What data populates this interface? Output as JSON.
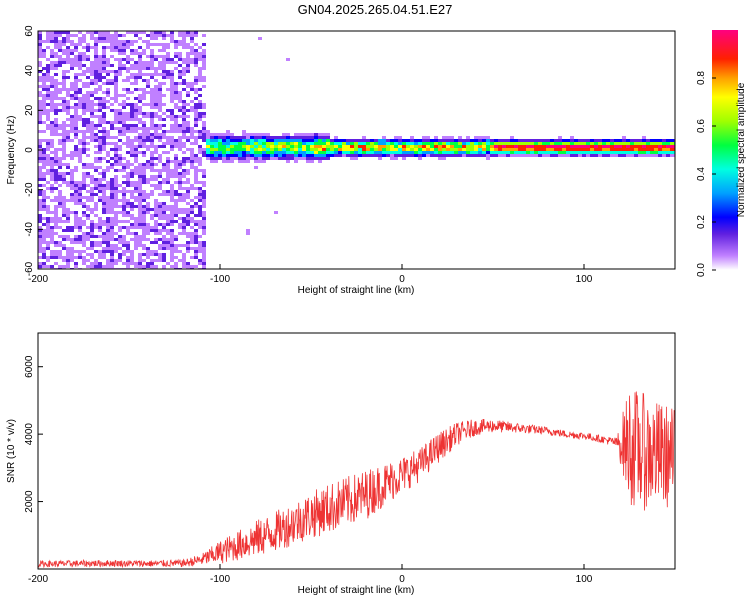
{
  "title": "GN04.2025.265.04.51.E27",
  "chart_data": [
    {
      "type": "heatmap",
      "xlabel": "Height of straight line (km)",
      "ylabel": "Frequency (Hz)",
      "xlim": [
        -200,
        150
      ],
      "ylim": [
        -60,
        60
      ],
      "x_ticks": [
        -200,
        -100,
        0,
        100
      ],
      "y_ticks": [
        -60,
        -40,
        -20,
        0,
        20,
        40,
        60
      ],
      "colorbar": {
        "label": "Normalized spectral amplitude",
        "range": [
          0,
          1
        ],
        "ticks": [
          "0.0",
          "0.2",
          "0.4",
          "0.6",
          "0.8"
        ],
        "colormap": [
          "#ffffff",
          "#c080ff",
          "#6020e0",
          "#0000ff",
          "#00a0ff",
          "#00ffe0",
          "#00ff40",
          "#a0ff00",
          "#ffff00",
          "#ffa000",
          "#ff2000",
          "#ff0080"
        ]
      },
      "features": {
        "noise_region_km": [
          -200,
          -108
        ],
        "ridge_frequency_hz": 2,
        "strong_band_km": [
          50,
          150
        ]
      }
    },
    {
      "type": "line",
      "xlabel": "Height of straight line (km)",
      "ylabel": "SNR (10 * v/v)",
      "xlim": [
        -200,
        150
      ],
      "ylim": [
        0,
        7000
      ],
      "x_ticks": [
        -200,
        -100,
        0,
        100
      ],
      "y_ticks": [
        2000,
        4000,
        6000
      ],
      "color": "#ee3333",
      "series": [
        {
          "name": "SNR",
          "x": [
            -200,
            -180,
            -160,
            -140,
            -120,
            -110,
            -100,
            -90,
            -80,
            -70,
            -60,
            -50,
            -40,
            -30,
            -20,
            -10,
            0,
            10,
            20,
            30,
            40,
            50,
            60,
            70,
            80,
            90,
            100,
            110,
            118,
            125,
            130,
            140,
            150
          ],
          "y": [
            150,
            160,
            170,
            160,
            170,
            280,
            500,
            700,
            900,
            1100,
            1350,
            1600,
            1800,
            2000,
            2200,
            2500,
            2800,
            3100,
            3600,
            4000,
            4200,
            4250,
            4200,
            4150,
            4100,
            4000,
            3950,
            3850,
            3750,
            3700,
            3500,
            3400,
            3300
          ],
          "noise": [
            90,
            100,
            100,
            100,
            110,
            180,
            350,
            450,
            550,
            600,
            650,
            700,
            750,
            750,
            750,
            650,
            550,
            500,
            450,
            350,
            250,
            200,
            160,
            140,
            120,
            110,
            110,
            110,
            150,
            1800,
            1800,
            1600,
            1500
          ]
        }
      ]
    }
  ]
}
